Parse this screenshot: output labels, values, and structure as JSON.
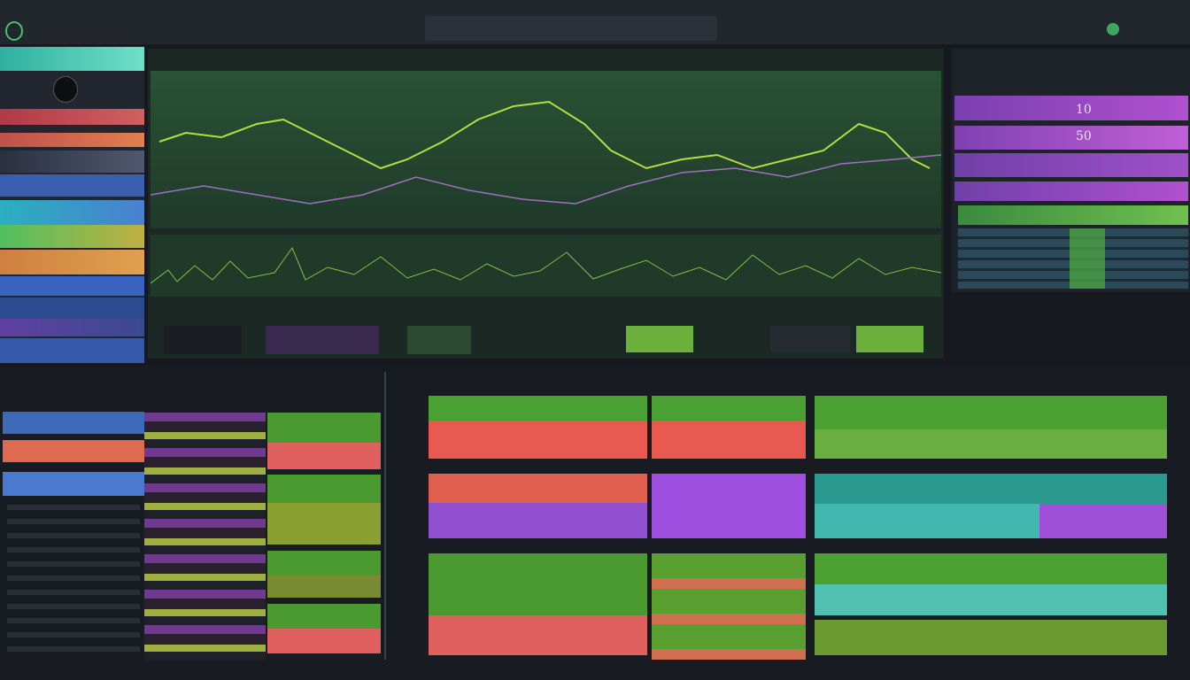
{
  "right_panel": {
    "rows": [
      {
        "value": "10"
      },
      {
        "value": "50"
      }
    ]
  }
}
